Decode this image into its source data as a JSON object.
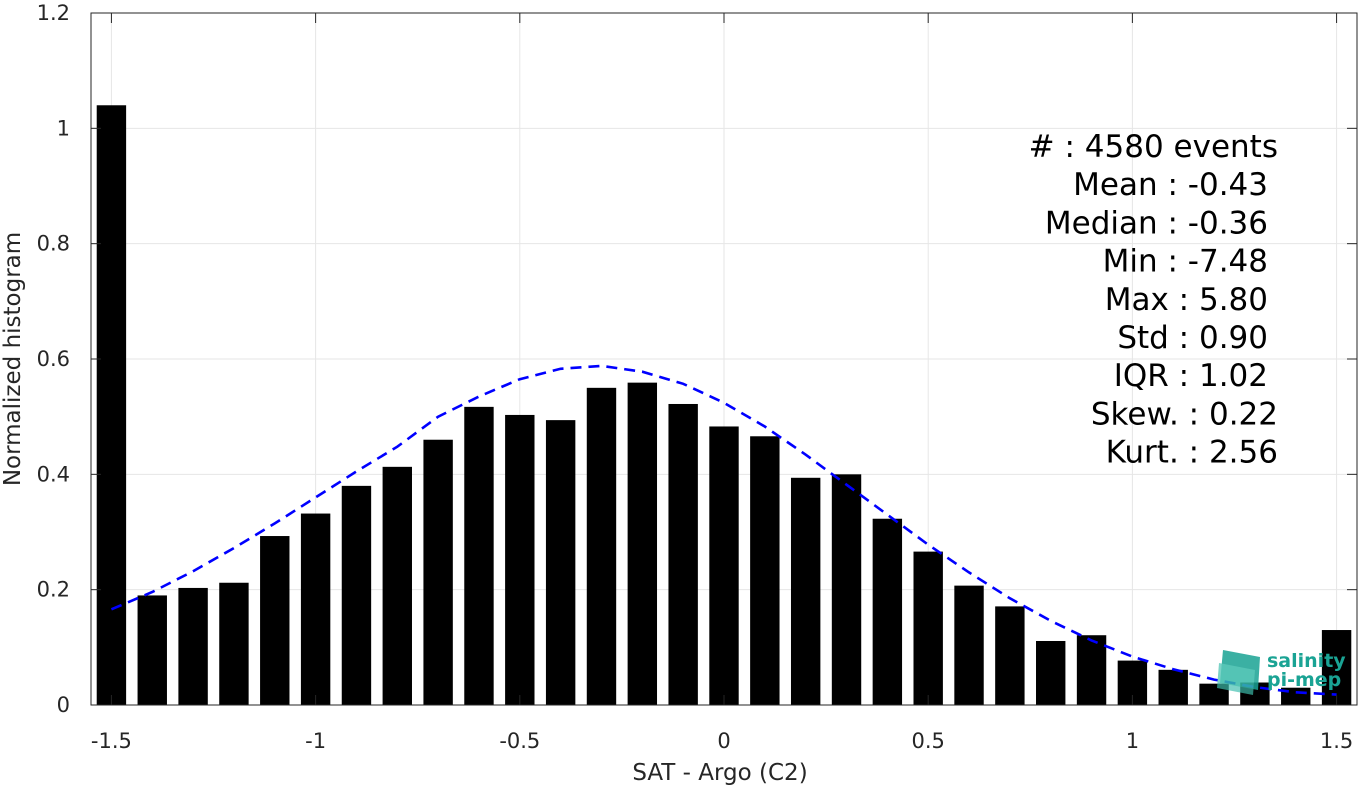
{
  "chart_data": {
    "type": "bar",
    "xlabel": "SAT - Argo (C2)",
    "ylabel": "Normalized histogram",
    "xlim": [
      -1.55,
      1.55
    ],
    "ylim": [
      0,
      1.2
    ],
    "grid": true,
    "xticks": [
      -1.5,
      -1,
      -0.5,
      0,
      0.5,
      1,
      1.5
    ],
    "xtick_labels": [
      "-1.5",
      "-1",
      "-0.5",
      "0",
      "0.5",
      "1",
      "1.5"
    ],
    "yticks": [
      0,
      0.2,
      0.4,
      0.6,
      0.8,
      1,
      1.2
    ],
    "ytick_labels": [
      "0",
      "0.2",
      "0.4",
      "0.6",
      "0.8",
      "1",
      "1.2"
    ],
    "bar_color": "#000000",
    "fit_color": "#0000ff",
    "bars": {
      "x": [
        -1.5,
        -1.4,
        -1.3,
        -1.2,
        -1.1,
        -1.0,
        -0.9,
        -0.8,
        -0.7,
        -0.6,
        -0.5,
        -0.4,
        -0.3,
        -0.2,
        -0.1,
        0.0,
        0.1,
        0.2,
        0.3,
        0.4,
        0.5,
        0.6,
        0.7,
        0.8,
        0.9,
        1.0,
        1.1,
        1.2,
        1.3,
        1.4,
        1.5
      ],
      "values": [
        1.04,
        0.19,
        0.203,
        0.212,
        0.293,
        0.332,
        0.38,
        0.413,
        0.46,
        0.517,
        0.503,
        0.494,
        0.55,
        0.559,
        0.522,
        0.483,
        0.466,
        0.394,
        0.4,
        0.323,
        0.266,
        0.207,
        0.171,
        0.111,
        0.121,
        0.077,
        0.061,
        0.037,
        0.039,
        0.03,
        0.13
      ]
    },
    "fit_curve": {
      "style": "dashed",
      "x": [
        -1.5,
        -1.4,
        -1.3,
        -1.2,
        -1.1,
        -1.0,
        -0.9,
        -0.8,
        -0.7,
        -0.6,
        -0.5,
        -0.4,
        -0.3,
        -0.2,
        -0.1,
        0.0,
        0.1,
        0.2,
        0.3,
        0.4,
        0.5,
        0.6,
        0.7,
        0.8,
        0.9,
        1.0,
        1.1,
        1.2,
        1.3,
        1.4,
        1.5
      ],
      "y": [
        0.166,
        0.196,
        0.232,
        0.272,
        0.315,
        0.36,
        0.405,
        0.448,
        0.5,
        0.535,
        0.565,
        0.583,
        0.588,
        0.578,
        0.557,
        0.524,
        0.483,
        0.434,
        0.382,
        0.33,
        0.278,
        0.23,
        0.185,
        0.146,
        0.112,
        0.084,
        0.062,
        0.044,
        0.031,
        0.022,
        0.018
      ]
    },
    "stats": [
      "#  : 4580 events",
      "Mean : -0.43",
      "Median : -0.36",
      "Min : -7.48",
      "Max : 5.80",
      "Std : 0.90",
      "IQR : 1.02",
      "Skew. : 0.22",
      "Kurt. : 2.56"
    ],
    "logo": {
      "line1": "salinity",
      "line2": "pi-mep",
      "color": "#1aa394"
    }
  }
}
